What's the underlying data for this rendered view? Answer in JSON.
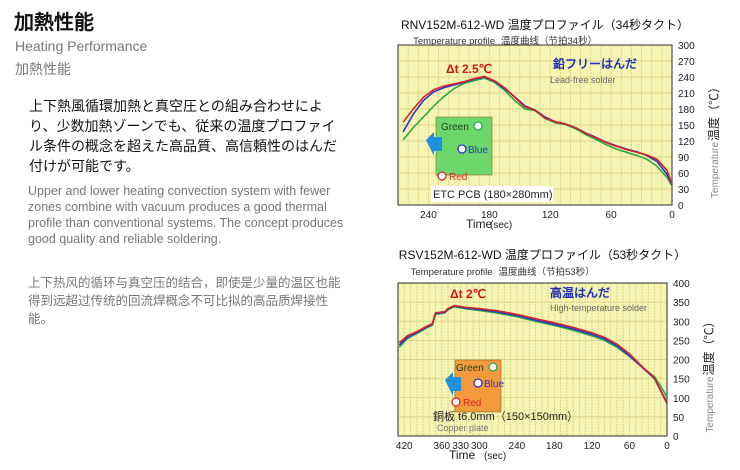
{
  "heading": {
    "title": "加熱性能",
    "subtitle_en": "Heating Performance",
    "subtitle_ja": "加熱性能"
  },
  "body": {
    "japanese": "上下熱風循環加熱と真空圧との組み合わせにより、少数加熱ゾーンでも、従来の温度プロファイル条件の概念を超えた高品質、高信頼性のはんだ付けが可能です。",
    "english": "Upper and lower heating convection system with fewer zones combine with vacuum produces a good thermal profile than conventional systems. The concept produces good quality and reliable soldering.",
    "chinese": "上下热风的循环与真空压的结合，即使是少量的温区也能得到远超过传统的回流焊概念不可比拟的高品质焊接性能。"
  },
  "colors": {
    "plot_bg": "#f6f4b2",
    "grid": "#d3cd7d",
    "frame": "#4d4d4d",
    "green": "#2aa84a",
    "blue": "#2b35c8",
    "red": "#d42626",
    "annotation_red": "#d01515",
    "annotation_blue": "#1f2eb8",
    "arrow": "#1e90e0",
    "box_chart1": "#6cd86a",
    "box_chart2": "#f59a3c"
  },
  "chart_data": [
    {
      "type": "line",
      "title": "RNV152M-612-WD 温度プロファイル（34秒タクト）",
      "subtitle_en": "Temperature profile",
      "subtitle_zh": "温度曲线（节拍34秒）",
      "xlabel": "Time",
      "xunit": "(sec)",
      "ylabel_ja": "温度（℃）",
      "ylabel_en": "Temperature",
      "xlim": [
        270,
        0
      ],
      "ylim": [
        0,
        300
      ],
      "x_ticks": [
        240,
        180,
        120,
        60,
        0
      ],
      "y_ticks": [
        0,
        30,
        60,
        90,
        120,
        150,
        180,
        210,
        240,
        270,
        300
      ],
      "annotations": {
        "delta_t": "Δt 2.5℃",
        "solder": "鉛フリーはんだ",
        "solder_en": "Lead-free solder",
        "pcb": "ETC PCB (180×280mm)"
      },
      "legend": [
        "Green",
        "Blue",
        "Red"
      ],
      "series": [
        {
          "name": "Green",
          "color": "green",
          "x": [
            265,
            255,
            245,
            235,
            225,
            215,
            205,
            195,
            185,
            175,
            165,
            155,
            145,
            135,
            125,
            115,
            105,
            95,
            85,
            75,
            65,
            55,
            45,
            35,
            25,
            15,
            5,
            0
          ],
          "y": [
            122,
            145,
            165,
            185,
            203,
            218,
            228,
            233,
            238,
            230,
            215,
            196,
            180,
            177,
            162,
            154,
            151,
            143,
            132,
            123,
            113,
            105,
            99,
            93,
            86,
            73,
            52,
            36
          ]
        },
        {
          "name": "Blue",
          "color": "blue",
          "x": [
            265,
            255,
            245,
            235,
            225,
            215,
            205,
            195,
            185,
            175,
            165,
            155,
            145,
            135,
            125,
            115,
            105,
            95,
            85,
            75,
            65,
            55,
            45,
            35,
            25,
            15,
            5,
            0
          ],
          "y": [
            137,
            170,
            196,
            212,
            220,
            225,
            230,
            236,
            240,
            232,
            218,
            203,
            186,
            178,
            165,
            156,
            152,
            145,
            135,
            127,
            118,
            111,
            105,
            100,
            93,
            82,
            58,
            38
          ]
        },
        {
          "name": "Red",
          "color": "red",
          "x": [
            265,
            255,
            245,
            235,
            225,
            215,
            205,
            195,
            185,
            175,
            165,
            155,
            145,
            135,
            125,
            115,
            105,
            95,
            85,
            75,
            65,
            55,
            45,
            35,
            25,
            15,
            5,
            0
          ],
          "y": [
            155,
            180,
            202,
            216,
            223,
            227,
            231,
            237,
            241,
            233,
            220,
            202,
            184,
            178,
            163,
            156,
            152,
            145,
            134,
            126,
            117,
            110,
            104,
            99,
            94,
            86,
            65,
            40
          ]
        }
      ]
    },
    {
      "type": "line",
      "title": "RSV152M-612-WD 温度プロファイル（53秒タクト）",
      "subtitle_en": "Temperature profile",
      "subtitle_zh": "温度曲线（节拍53秒）",
      "xlabel": "Time",
      "xunit": "(sec)",
      "ylabel_ja": "温度（℃）",
      "ylabel_en": "Temperature",
      "xlim": [
        430,
        0
      ],
      "ylim": [
        0,
        400
      ],
      "x_ticks": [
        420,
        360,
        330,
        300,
        240,
        180,
        120,
        60,
        0
      ],
      "y_ticks": [
        0,
        50,
        100,
        150,
        200,
        250,
        300,
        350,
        400
      ],
      "annotations": {
        "delta_t": "Δt 2℃",
        "solder": "高温はんだ",
        "solder_en": "High-temperature solder",
        "pcb": "銅板 t6.0mm（150×150mm）",
        "pcb_en": "Copper plate"
      },
      "legend": [
        "Green",
        "Blue",
        "Red"
      ],
      "series": [
        {
          "name": "Green",
          "color": "green",
          "x": [
            428,
            415,
            400,
            385,
            375,
            370,
            355,
            350,
            340,
            320,
            300,
            270,
            240,
            210,
            180,
            150,
            120,
            100,
            80,
            60,
            40,
            20,
            10,
            0
          ],
          "y": [
            232,
            255,
            268,
            282,
            290,
            318,
            322,
            330,
            338,
            332,
            328,
            321,
            312,
            300,
            289,
            276,
            262,
            250,
            232,
            208,
            180,
            155,
            130,
            102
          ]
        },
        {
          "name": "Blue",
          "color": "blue",
          "x": [
            428,
            415,
            400,
            385,
            375,
            370,
            355,
            350,
            340,
            320,
            300,
            270,
            240,
            210,
            180,
            150,
            120,
            100,
            80,
            60,
            40,
            20,
            10,
            0
          ],
          "y": [
            238,
            258,
            270,
            284,
            292,
            320,
            323,
            332,
            340,
            334,
            331,
            324,
            315,
            303,
            292,
            280,
            266,
            254,
            236,
            210,
            180,
            150,
            118,
            85
          ]
        },
        {
          "name": "Red",
          "color": "red",
          "x": [
            428,
            415,
            400,
            385,
            375,
            370,
            355,
            350,
            340,
            320,
            300,
            270,
            240,
            210,
            180,
            150,
            120,
            100,
            80,
            60,
            40,
            20,
            10,
            0
          ],
          "y": [
            244,
            262,
            273,
            286,
            294,
            322,
            325,
            333,
            341,
            336,
            333,
            327,
            318,
            307,
            296,
            284,
            270,
            258,
            240,
            215,
            182,
            152,
            120,
            88
          ]
        }
      ]
    }
  ]
}
